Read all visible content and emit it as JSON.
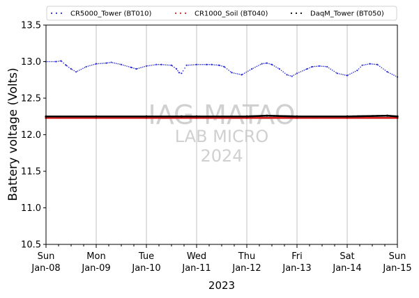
{
  "chart_data": {
    "type": "scatter",
    "title": "",
    "xlabel": "2023",
    "ylabel": "Battery voltage (Volts)",
    "ylim": [
      10.5,
      13.5
    ],
    "yticks": [
      "10.5",
      "11.0",
      "11.5",
      "12.0",
      "12.5",
      "13.0",
      "13.5"
    ],
    "xlim_days": [
      0,
      7
    ],
    "xticks": [
      {
        "day": "Sun",
        "date": "Jan-08"
      },
      {
        "day": "Mon",
        "date": "Jan-09"
      },
      {
        "day": "Tue",
        "date": "Jan-10"
      },
      {
        "day": "Wed",
        "date": "Jan-11"
      },
      {
        "day": "Thu",
        "date": "Jan-12"
      },
      {
        "day": "Fri",
        "date": "Jan-13"
      },
      {
        "day": "Sat",
        "date": "Jan-14"
      },
      {
        "day": "Sun",
        "date": "Jan-15"
      }
    ],
    "grid": "vertical",
    "legend_position": "top",
    "series": [
      {
        "name": "CR5000_Tower (BT010)",
        "color": "#2b2bd6",
        "x": [
          0.0,
          0.2,
          0.3,
          0.4,
          0.5,
          0.6,
          0.8,
          1.0,
          1.2,
          1.3,
          1.5,
          1.7,
          1.8,
          2.0,
          2.2,
          2.3,
          2.5,
          2.6,
          2.65,
          2.7,
          2.8,
          3.0,
          3.2,
          3.3,
          3.45,
          3.55,
          3.7,
          3.9,
          4.1,
          4.3,
          4.4,
          4.5,
          4.65,
          4.8,
          4.9,
          5.0,
          5.2,
          5.3,
          5.45,
          5.6,
          5.8,
          6.0,
          6.2,
          6.3,
          6.45,
          6.6,
          6.8,
          7.0
        ],
        "y": [
          13.0,
          13.0,
          13.01,
          12.95,
          12.9,
          12.86,
          12.93,
          12.97,
          12.98,
          12.99,
          12.96,
          12.92,
          12.9,
          12.94,
          12.96,
          12.96,
          12.95,
          12.9,
          12.85,
          12.84,
          12.95,
          12.96,
          12.96,
          12.96,
          12.95,
          12.93,
          12.85,
          12.82,
          12.9,
          12.97,
          12.98,
          12.96,
          12.9,
          12.82,
          12.8,
          12.84,
          12.9,
          12.93,
          12.94,
          12.93,
          12.84,
          12.81,
          12.88,
          12.95,
          12.97,
          12.96,
          12.86,
          12.79
        ]
      },
      {
        "name": "CR1000_Soil (BT040)",
        "color": "#d62020",
        "x": [
          0.0,
          1.0,
          2.0,
          3.0,
          4.0,
          5.0,
          6.0,
          7.0
        ],
        "y": [
          12.23,
          12.23,
          12.23,
          12.23,
          12.23,
          12.23,
          12.23,
          12.23
        ]
      },
      {
        "name": "DaqM_Tower (BT050)",
        "color": "#000000",
        "x": [
          0.0,
          1.0,
          2.0,
          2.7,
          3.0,
          4.0,
          4.4,
          5.0,
          6.0,
          6.8,
          7.0
        ],
        "y": [
          12.25,
          12.25,
          12.25,
          12.25,
          12.25,
          12.25,
          12.26,
          12.25,
          12.25,
          12.26,
          12.25
        ]
      }
    ],
    "watermark": [
      "IAG-MATAO",
      "LAB MICRO",
      "2024"
    ]
  }
}
